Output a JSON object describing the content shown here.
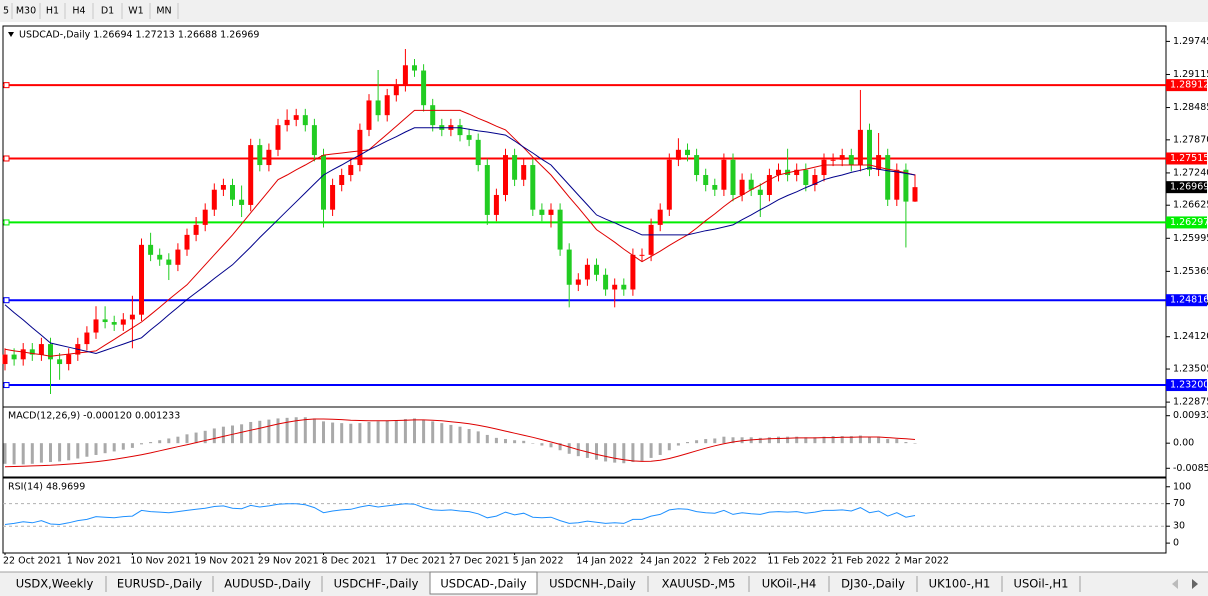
{
  "toolbar": {
    "buttons": [
      "5",
      "M30",
      "H1",
      "H4",
      "D1",
      "W1",
      "MN"
    ]
  },
  "chart_data": [
    {
      "type": "candlestick",
      "title": "USDCAD-,Daily  1.26694 1.27213 1.26688 1.26969",
      "categories": [
        "22 Oct 2021",
        null,
        null,
        null,
        null,
        null,
        null,
        "1 Nov 2021",
        null,
        null,
        null,
        null,
        null,
        null,
        "10 Nov 2021",
        null,
        null,
        null,
        null,
        null,
        null,
        "19 Nov 2021",
        null,
        null,
        null,
        null,
        null,
        null,
        "29 Nov 2021",
        null,
        null,
        null,
        null,
        null,
        null,
        "8 Dec 2021",
        null,
        null,
        null,
        null,
        null,
        null,
        "17 Dec 2021",
        null,
        null,
        null,
        null,
        null,
        null,
        "27 Dec 2021",
        null,
        null,
        null,
        null,
        null,
        null,
        "5 Jan 2022",
        null,
        null,
        null,
        null,
        null,
        null,
        "14 Jan 2022",
        null,
        null,
        null,
        null,
        null,
        null,
        "24 Jan 2022",
        null,
        null,
        null,
        null,
        null,
        null,
        "2 Feb 2022",
        null,
        null,
        null,
        null,
        null,
        null,
        "11 Feb 2022",
        null,
        null,
        null,
        null,
        null,
        null,
        "21 Feb 2022",
        null,
        null,
        null,
        null,
        null,
        null,
        "2 Mar 2022",
        null,
        null
      ],
      "open": [
        1.236,
        1.2378,
        1.2369,
        1.2388,
        1.2378,
        1.2398,
        1.2369,
        1.236,
        1.2378,
        1.2398,
        1.242,
        1.2445,
        1.244,
        1.2435,
        1.2445,
        1.2454,
        1.2587,
        1.2568,
        1.2559,
        1.2549,
        1.2578,
        1.2606,
        1.2625,
        1.2654,
        1.2692,
        1.2701,
        1.2673,
        1.2663,
        1.2777,
        1.2739,
        1.2768,
        1.2815,
        1.2825,
        1.2834,
        1.2815,
        1.2758,
        1.2654,
        1.2701,
        1.272,
        1.2739,
        1.2806,
        1.2862,
        1.2834,
        1.2872,
        1.2891,
        1.2929,
        1.2919,
        1.2853,
        1.2815,
        1.2806,
        1.2815,
        1.2796,
        1.2787,
        1.2739,
        1.2644,
        1.2682,
        1.2758,
        1.2711,
        1.2739,
        1.2654,
        1.2644,
        1.2654,
        1.2578,
        1.2511,
        1.2521,
        1.2549,
        1.253,
        1.2502,
        1.2511,
        1.2502,
        1.2568,
        1.2568,
        1.2625,
        1.2654,
        1.2749,
        1.2768,
        1.2758,
        1.272,
        1.2701,
        1.2692,
        1.2749,
        1.2682,
        1.2711,
        1.2692,
        1.2682,
        1.272,
        1.273,
        1.272,
        1.273,
        1.2701,
        1.272,
        1.2749,
        1.2749,
        1.2758,
        1.2739,
        1.2806,
        1.273,
        1.2758,
        1.2673,
        1.273,
        1.26694
      ],
      "high": [
        1.239,
        1.239,
        1.24,
        1.24,
        1.241,
        1.241,
        1.2381,
        1.239,
        1.241,
        1.2432,
        1.247,
        1.247,
        1.2452,
        1.2457,
        1.249,
        1.2599,
        1.261,
        1.258,
        1.2571,
        1.259,
        1.2618,
        1.264,
        1.2666,
        1.2704,
        1.2713,
        1.2713,
        1.27,
        1.2789,
        1.2789,
        1.278,
        1.2827,
        1.2845,
        1.2846,
        1.2846,
        1.2827,
        1.277,
        1.2713,
        1.2732,
        1.2751,
        1.2818,
        1.2874,
        1.292,
        1.2884,
        1.2903,
        1.296,
        1.2941,
        1.2931,
        1.2865,
        1.2827,
        1.2827,
        1.2827,
        1.2808,
        1.2799,
        1.2751,
        1.2694,
        1.277,
        1.277,
        1.2751,
        1.2751,
        1.2666,
        1.2666,
        1.2666,
        1.259,
        1.2533,
        1.2561,
        1.2561,
        1.2542,
        1.2523,
        1.2523,
        1.258,
        1.258,
        1.2637,
        1.2666,
        1.2761,
        1.279,
        1.278,
        1.277,
        1.2732,
        1.2713,
        1.2761,
        1.2761,
        1.2723,
        1.2723,
        1.2704,
        1.2732,
        1.2742,
        1.277,
        1.2742,
        1.2742,
        1.2732,
        1.2761,
        1.2761,
        1.277,
        1.277,
        1.2882,
        1.2818,
        1.28,
        1.277,
        1.2742,
        1.2742,
        1.27213
      ],
      "low": [
        1.2348,
        1.2357,
        1.2357,
        1.2366,
        1.2366,
        1.2303,
        1.233,
        1.2348,
        1.2366,
        1.2386,
        1.2408,
        1.2428,
        1.2423,
        1.2423,
        1.239,
        1.2442,
        1.2556,
        1.2547,
        1.252,
        1.2537,
        1.2566,
        1.2594,
        1.2613,
        1.2642,
        1.268,
        1.2661,
        1.264,
        1.2651,
        1.2727,
        1.2727,
        1.2756,
        1.2803,
        1.2813,
        1.2803,
        1.2746,
        1.262,
        1.2642,
        1.2689,
        1.2708,
        1.2727,
        1.2794,
        1.2822,
        1.2822,
        1.286,
        1.2879,
        1.2907,
        1.2841,
        1.2803,
        1.2794,
        1.2794,
        1.2784,
        1.2775,
        1.2727,
        1.2625,
        1.2632,
        1.267,
        1.2699,
        1.2699,
        1.2642,
        1.2632,
        1.262,
        1.2566,
        1.2468,
        1.2499,
        1.2509,
        1.2518,
        1.249,
        1.2468,
        1.249,
        1.249,
        1.2556,
        1.2556,
        1.2613,
        1.2642,
        1.2737,
        1.2746,
        1.2708,
        1.2689,
        1.268,
        1.268,
        1.267,
        1.267,
        1.268,
        1.264,
        1.267,
        1.2708,
        1.2708,
        1.2708,
        1.2689,
        1.2689,
        1.2708,
        1.2737,
        1.2737,
        1.2727,
        1.2727,
        1.2718,
        1.2718,
        1.2661,
        1.2661,
        1.2582,
        1.26688
      ],
      "close": [
        1.2378,
        1.2369,
        1.2388,
        1.2378,
        1.2398,
        1.2369,
        1.236,
        1.2378,
        1.2398,
        1.242,
        1.2445,
        1.244,
        1.2435,
        1.2445,
        1.2454,
        1.2587,
        1.2568,
        1.2559,
        1.2549,
        1.2578,
        1.2606,
        1.2625,
        1.2654,
        1.2692,
        1.2701,
        1.2673,
        1.2663,
        1.2777,
        1.2739,
        1.2768,
        1.2815,
        1.2825,
        1.2834,
        1.2815,
        1.2758,
        1.2654,
        1.2701,
        1.272,
        1.2739,
        1.2806,
        1.2862,
        1.2834,
        1.2872,
        1.2891,
        1.2929,
        1.2919,
        1.2853,
        1.2815,
        1.2806,
        1.2815,
        1.2796,
        1.2787,
        1.2739,
        1.2644,
        1.2682,
        1.2758,
        1.2711,
        1.2739,
        1.2654,
        1.2644,
        1.2654,
        1.2578,
        1.2511,
        1.2521,
        1.2549,
        1.253,
        1.2502,
        1.2511,
        1.2502,
        1.2568,
        1.2568,
        1.2625,
        1.2654,
        1.2749,
        1.2768,
        1.2758,
        1.272,
        1.2701,
        1.2692,
        1.2749,
        1.2682,
        1.2711,
        1.2692,
        1.2682,
        1.272,
        1.273,
        1.272,
        1.273,
        1.2701,
        1.272,
        1.2749,
        1.2749,
        1.2758,
        1.2739,
        1.2806,
        1.273,
        1.2758,
        1.2673,
        1.273,
        1.26694,
        1.26969
      ],
      "up_color": "#ff0000",
      "down_color": "#22cc22",
      "series": [
        {
          "color": "#e00000",
          "values": [
            1.2388,
            1.2385,
            1.2383,
            1.238,
            1.2378,
            1.2375,
            1.2377,
            1.2379,
            1.2381,
            1.2383,
            1.2385,
            1.2396,
            1.2407,
            1.2418,
            1.2429,
            1.244,
            1.2454,
            1.2468,
            1.2483,
            1.2497,
            1.2511,
            1.253,
            1.2549,
            1.2568,
            1.2587,
            1.2606,
            1.2627,
            1.2648,
            1.2669,
            1.269,
            1.2711,
            1.272,
            1.273,
            1.2739,
            1.2749,
            1.2758,
            1.276,
            1.2762,
            1.2764,
            1.2766,
            1.2768,
            1.2783,
            1.2798,
            1.2813,
            1.2828,
            1.2843,
            1.2843,
            1.2843,
            1.2843,
            1.2843,
            1.2843,
            1.2836,
            1.2828,
            1.2821,
            1.2813,
            1.2806,
            1.2789,
            1.2772,
            1.2754,
            1.2737,
            1.272,
            1.2699,
            1.2678,
            1.2658,
            1.2637,
            1.2616,
            1.2604,
            1.2592,
            1.2579,
            1.2567,
            1.2555,
            1.2565,
            1.2575,
            1.2586,
            1.2596,
            1.2606,
            1.2619,
            1.2633,
            1.2646,
            1.266,
            1.2673,
            1.2682,
            1.2692,
            1.2701,
            1.2711,
            1.272,
            1.2724,
            1.2728,
            1.2731,
            1.2735,
            1.2739,
            1.2739,
            1.2739,
            1.2739,
            1.2739,
            1.2739,
            1.2735,
            1.2731,
            1.2728,
            1.2724,
            1.272
          ]
        },
        {
          "color": "#00008b",
          "values": [
            1.2473,
            1.2458,
            1.2444,
            1.2429,
            1.2415,
            1.24,
            1.2396,
            1.2392,
            1.2388,
            1.2384,
            1.238,
            1.2386,
            1.2392,
            1.2398,
            1.2404,
            1.241,
            1.2425,
            1.2439,
            1.2454,
            1.2468,
            1.2483,
            1.2496,
            1.2509,
            1.2523,
            1.2536,
            1.2549,
            1.2566,
            1.2583,
            1.2601,
            1.2618,
            1.2635,
            1.2652,
            1.2669,
            1.2686,
            1.2703,
            1.272,
            1.273,
            1.2739,
            1.2749,
            1.2758,
            1.2768,
            1.2776,
            1.2785,
            1.2793,
            1.2802,
            1.281,
            1.281,
            1.281,
            1.281,
            1.281,
            1.281,
            1.2807,
            1.2804,
            1.2802,
            1.2799,
            1.2796,
            1.2785,
            1.2773,
            1.2762,
            1.275,
            1.2739,
            1.272,
            1.2701,
            1.2682,
            1.2663,
            1.2644,
            1.2636,
            1.2629,
            1.2621,
            1.2614,
            1.2606,
            1.2606,
            1.2606,
            1.2606,
            1.2606,
            1.2606,
            1.261,
            1.2614,
            1.2617,
            1.2621,
            1.2625,
            1.2635,
            1.2644,
            1.2654,
            1.2663,
            1.2673,
            1.2681,
            1.2688,
            1.2696,
            1.2703,
            1.2711,
            1.2716,
            1.272,
            1.2725,
            1.2729,
            1.2734,
            1.2731,
            1.2728,
            1.2726,
            1.2723,
            1.272
          ]
        }
      ],
      "ylim": [
        1.2282,
        1.3
      ],
      "yticks": [
        1.29745,
        1.29115,
        1.28485,
        {
          "value": 1.2787,
          "label": "1.27870"
        },
        {
          "value": 1.2724,
          "label": "1.27240"
        },
        1.26625,
        1.25995,
        1.25365,
        {
          "value": 1.2475,
          "label": "1.24750"
        },
        {
          "value": 1.2412,
          "label": "1.24120"
        },
        1.23505,
        1.22875
      ],
      "levels": [
        {
          "value": 1.28912,
          "color": "#ff0000"
        },
        {
          "value": 1.27515,
          "color": "#ff0000"
        },
        {
          "value": 1.26297,
          "color": "#00ee00"
        },
        {
          "value": 1.24816,
          "color": "#0000ff"
        },
        {
          "value": 1.232,
          "label": "1.23200",
          "color": "#0000ff"
        }
      ]
    },
    {
      "type": "macd",
      "title": "MACD(12,26,9) -0.000120 0.001233",
      "color": "#a9a9a9",
      "values": [
        -0.007,
        -0.0072,
        -0.0072,
        -0.007,
        -0.0066,
        -0.0064,
        -0.0062,
        -0.0058,
        -0.0052,
        -0.0046,
        -0.004,
        -0.0034,
        -0.0028,
        -0.0022,
        -0.0016,
        -0.0004,
        0.0004,
        0.001,
        0.0016,
        0.0022,
        0.003,
        0.0036,
        0.0042,
        0.005,
        0.0056,
        0.006,
        0.0064,
        0.0072,
        0.0076,
        0.008,
        0.0084,
        0.0086,
        0.0088,
        0.0088,
        0.0084,
        0.0074,
        0.007,
        0.0068,
        0.0066,
        0.0068,
        0.0072,
        0.0074,
        0.0076,
        0.0078,
        0.0082,
        0.0084,
        0.008,
        0.0074,
        0.0068,
        0.0062,
        0.0056,
        0.0048,
        0.004,
        0.0028,
        0.0018,
        0.0014,
        0.001,
        0.0008,
        0.0,
        -0.0008,
        -0.0014,
        -0.0024,
        -0.0036,
        -0.0044,
        -0.005,
        -0.0056,
        -0.0062,
        -0.0066,
        -0.0068,
        -0.0064,
        -0.006,
        -0.005,
        -0.004,
        -0.0024,
        -0.0008,
        0.0004,
        0.001,
        0.0014,
        0.0016,
        0.0022,
        0.002,
        0.002,
        0.002,
        0.0018,
        0.002,
        0.0022,
        0.0022,
        0.0022,
        0.002,
        0.002,
        0.0022,
        0.0024,
        0.0024,
        0.0024,
        0.0026,
        0.0022,
        0.0022,
        0.0014,
        0.0014,
        0.0004,
        -0.00012
      ],
      "series": [
        {
          "color": "#dd0000",
          "values": [
            -0.008,
            -0.0079,
            -0.0078,
            -0.0077,
            -0.0076,
            -0.0075,
            -0.0073,
            -0.0071,
            -0.0069,
            -0.0066,
            -0.0063,
            -0.0059,
            -0.0055,
            -0.005,
            -0.0045,
            -0.0039,
            -0.0033,
            -0.0026,
            -0.0019,
            -0.0012,
            -0.0005,
            0.0002,
            0.0009,
            0.0016,
            0.0023,
            0.003,
            0.0037,
            0.0044,
            0.0051,
            0.0058,
            0.0065,
            0.0071,
            0.0076,
            0.008,
            0.0082,
            0.0082,
            0.0081,
            0.008,
            0.0078,
            0.0077,
            0.0076,
            0.0076,
            0.0076,
            0.0077,
            0.0078,
            0.0079,
            0.0079,
            0.0078,
            0.0076,
            0.0073,
            0.007,
            0.0066,
            0.0061,
            0.0055,
            0.0048,
            0.0041,
            0.0034,
            0.0027,
            0.002,
            0.0012,
            0.0004,
            -0.0004,
            -0.0013,
            -0.0022,
            -0.003,
            -0.0038,
            -0.0045,
            -0.0051,
            -0.0056,
            -0.006,
            -0.0062,
            -0.0061,
            -0.0058,
            -0.0052,
            -0.0044,
            -0.0035,
            -0.0026,
            -0.0017,
            -0.0009,
            -0.0002,
            0.0004,
            0.0008,
            0.0011,
            0.0013,
            0.0015,
            0.0016,
            0.0017,
            0.0018,
            0.0018,
            0.0018,
            0.0019,
            0.0019,
            0.002,
            0.002,
            0.0021,
            0.0021,
            0.0021,
            0.0019,
            0.0017,
            0.0015,
            0.001233
          ]
        }
      ],
      "ylim": [
        -0.0108,
        0.0116
      ],
      "yticks": [
        0.009327,
        {
          "value": 0,
          "label": "0.00"
        },
        -0.008522
      ]
    },
    {
      "type": "line",
      "title": "RSI(14) 48.9699",
      "color": "#1e90ff",
      "values": [
        33,
        35,
        38,
        36,
        40,
        34,
        33,
        36,
        40,
        42,
        47,
        46,
        45,
        47,
        48,
        58,
        56,
        55,
        54,
        56,
        58,
        60,
        62,
        65,
        66,
        62,
        61,
        67,
        64,
        66,
        69,
        70,
        70,
        68,
        63,
        54,
        57,
        59,
        60,
        64,
        67,
        64,
        66,
        68,
        70,
        69,
        63,
        59,
        58,
        59,
        57,
        56,
        52,
        45,
        48,
        55,
        50,
        53,
        46,
        45,
        46,
        40,
        35,
        36,
        39,
        37,
        35,
        36,
        35,
        42,
        42,
        48,
        51,
        59,
        61,
        60,
        56,
        54,
        53,
        58,
        51,
        54,
        52,
        51,
        55,
        56,
        55,
        56,
        53,
        55,
        58,
        58,
        59,
        57,
        63,
        54,
        57,
        48,
        54,
        46,
        48.9699
      ],
      "ylim": [
        -14,
        112
      ],
      "yticks": [
        100,
        70,
        30,
        0
      ],
      "levels": [
        70,
        30
      ]
    }
  ],
  "tabs": {
    "items": [
      "USDX,Weekly",
      "EURUSD-,Daily",
      "AUDUSD-,Daily",
      "USDCHF-,Daily",
      "USDCAD-,Daily",
      "USDCNH-,Daily",
      "XAUUSD-,M5",
      "UKOil-,H4",
      "DJ30-,Daily",
      "UK100-,H1",
      "USOil-,H1"
    ],
    "active": 4
  }
}
